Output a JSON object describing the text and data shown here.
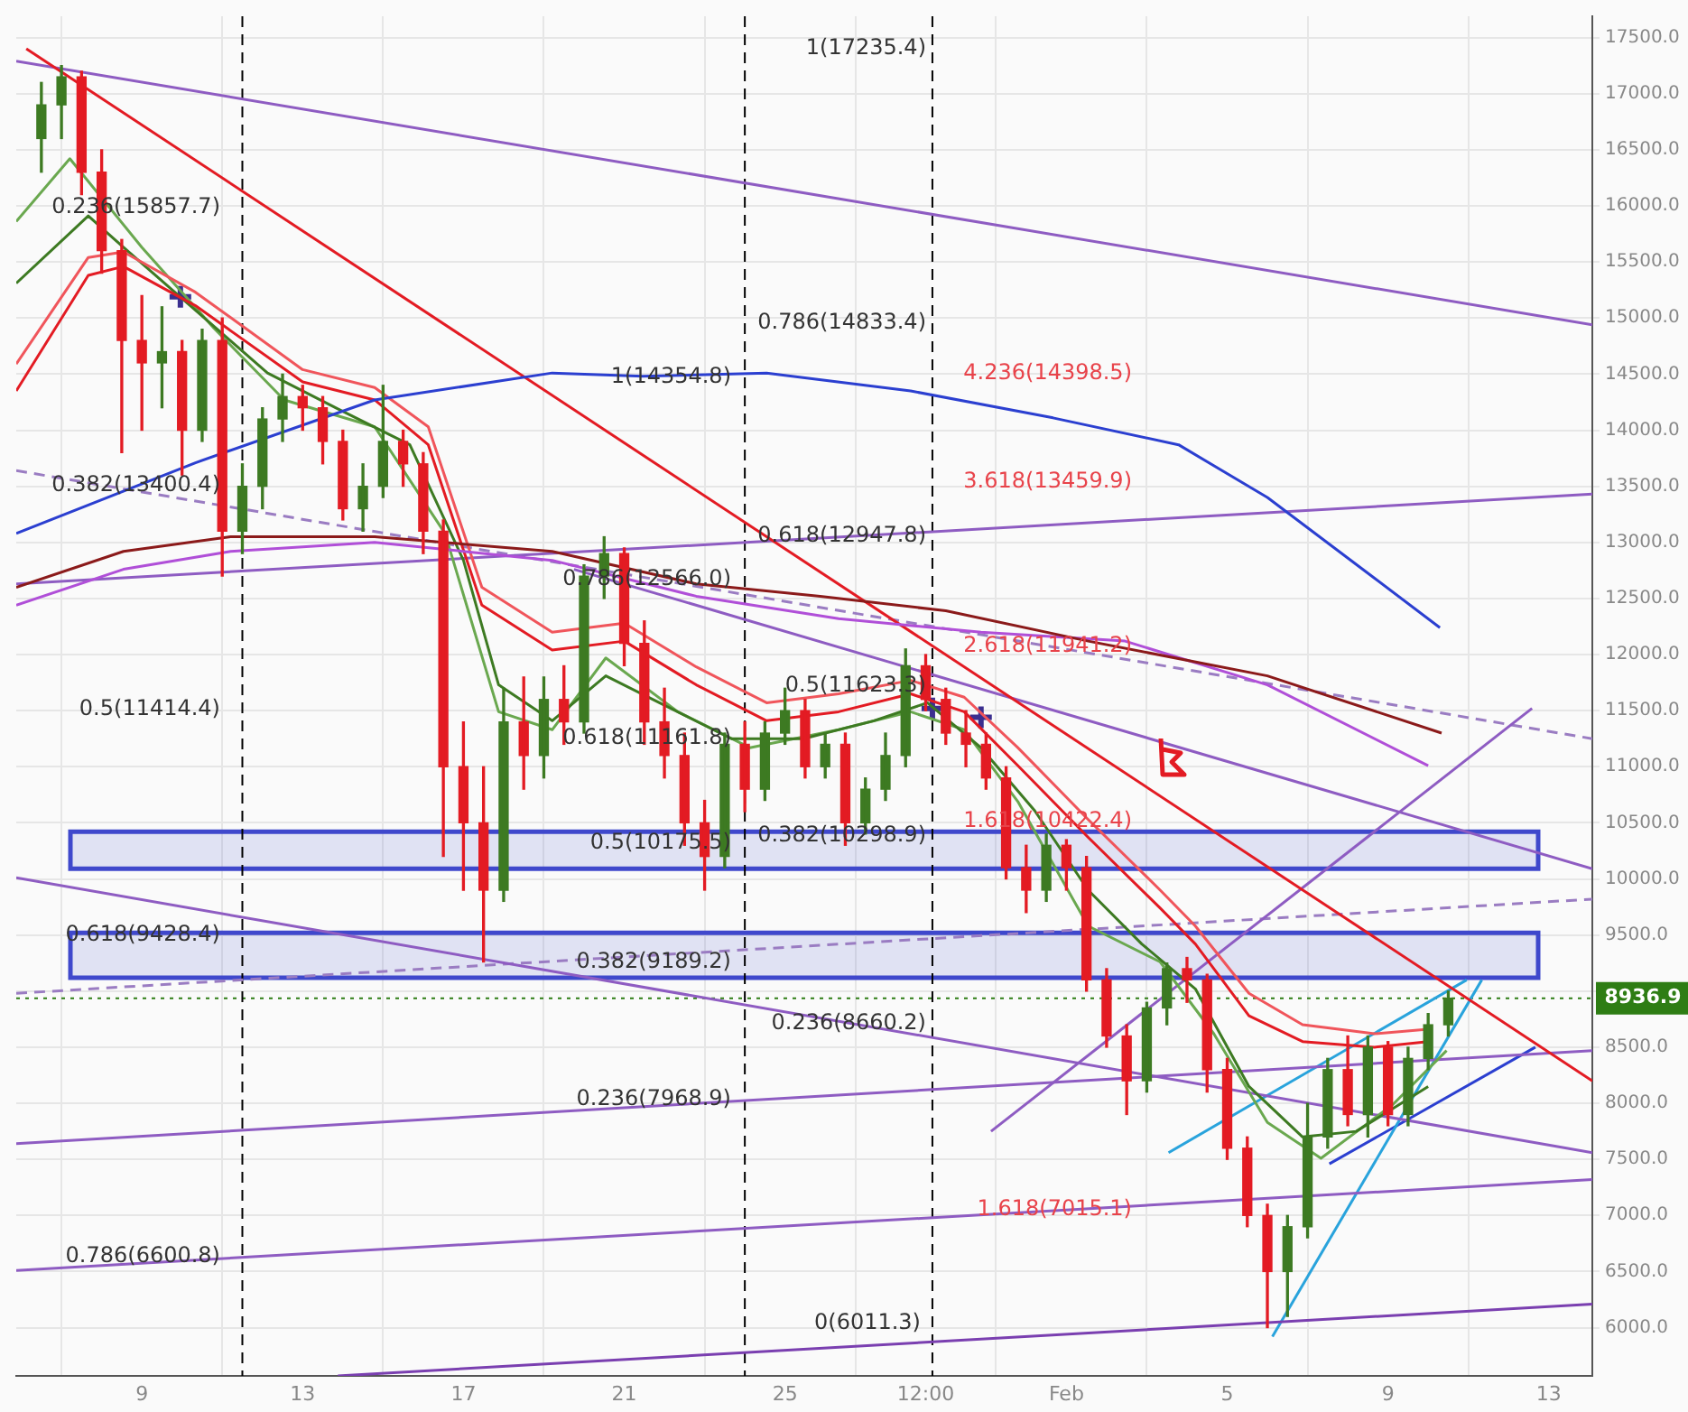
{
  "chart_data": {
    "type": "candlestick",
    "x": [
      "--01-06T12:00",
      "--01-07T00:00",
      "--01-07T12:00",
      "--01-08T00:00",
      "--01-08T12:00",
      "--01-09T00:00",
      "--01-09T12:00",
      "--01-10T00:00",
      "--01-10T12:00",
      "--01-11T00:00",
      "--01-11T12:00",
      "--01-12T00:00",
      "--01-12T12:00",
      "--01-13T00:00",
      "--01-13T12:00",
      "--01-14T00:00",
      "--01-14T12:00",
      "--01-15T00:00",
      "--01-15T12:00",
      "--01-16T00:00",
      "--01-16T12:00",
      "--01-17T00:00",
      "--01-17T12:00",
      "--01-18T00:00",
      "--01-18T12:00",
      "--01-19T00:00",
      "--01-19T12:00",
      "--01-20T00:00",
      "--01-20T12:00",
      "--01-21T00:00",
      "--01-21T12:00",
      "--01-22T00:00",
      "--01-22T12:00",
      "--01-23T00:00",
      "--01-23T12:00",
      "--01-24T00:00",
      "--01-24T12:00",
      "--01-25T00:00",
      "--01-25T12:00",
      "--01-26T00:00",
      "--01-26T12:00",
      "--01-27T00:00",
      "--01-27T12:00",
      "--01-28T00:00",
      "--01-28T12:00",
      "--01-29T00:00",
      "--01-29T12:00",
      "--01-30T00:00",
      "--01-30T12:00",
      "--01-31T00:00",
      "--01-31T12:00",
      "--02-01T00:00",
      "--02-01T12:00",
      "--02-02T00:00",
      "--02-02T12:00",
      "--02-03T00:00",
      "--02-03T12:00",
      "--02-04T00:00",
      "--02-04T12:00",
      "--02-05T00:00",
      "--02-05T12:00",
      "--02-06T00:00",
      "--02-06T12:00",
      "--02-07T00:00",
      "--02-07T12:00",
      "--02-08T00:00",
      "--02-08T12:00",
      "--02-09T00:00",
      "--02-09T12:00",
      "--02-10T00:00",
      "--02-10T12:00"
    ],
    "ohlc": [
      [
        16600,
        17100,
        16300,
        16900
      ],
      [
        16900,
        17250,
        16600,
        17150
      ],
      [
        17150,
        17200,
        16100,
        16300
      ],
      [
        16300,
        16500,
        15400,
        15600
      ],
      [
        15600,
        15700,
        13800,
        14800
      ],
      [
        14800,
        15200,
        14000,
        14600
      ],
      [
        14600,
        15100,
        14200,
        14700
      ],
      [
        14700,
        14800,
        13600,
        14000
      ],
      [
        14000,
        14900,
        13900,
        14800
      ],
      [
        14800,
        15000,
        12700,
        13100
      ],
      [
        13100,
        13700,
        12900,
        13500
      ],
      [
        13500,
        14200,
        13300,
        14100
      ],
      [
        14100,
        14500,
        13900,
        14300
      ],
      [
        14300,
        14400,
        14000,
        14200
      ],
      [
        14200,
        14300,
        13700,
        13900
      ],
      [
        13900,
        14000,
        13200,
        13300
      ],
      [
        13300,
        13700,
        13100,
        13500
      ],
      [
        13500,
        14400,
        13400,
        13900
      ],
      [
        13900,
        14000,
        13500,
        13700
      ],
      [
        13700,
        13800,
        12900,
        13100
      ],
      [
        13100,
        13200,
        10200,
        11000
      ],
      [
        11000,
        11400,
        9900,
        10500
      ],
      [
        10500,
        11000,
        9260,
        9900
      ],
      [
        9900,
        11700,
        9800,
        11400
      ],
      [
        11400,
        11800,
        10800,
        11100
      ],
      [
        11100,
        11800,
        10900,
        11600
      ],
      [
        11600,
        11900,
        11200,
        11400
      ],
      [
        11400,
        12800,
        11300,
        12700
      ],
      [
        12700,
        13050,
        12500,
        12900
      ],
      [
        12900,
        12950,
        11900,
        12100
      ],
      [
        12100,
        12300,
        11200,
        11400
      ],
      [
        11400,
        11700,
        10900,
        11100
      ],
      [
        11100,
        11300,
        10300,
        10500
      ],
      [
        10500,
        10700,
        9900,
        10200
      ],
      [
        10200,
        11300,
        10100,
        11200
      ],
      [
        11200,
        11400,
        10600,
        10800
      ],
      [
        10800,
        11400,
        10700,
        11300
      ],
      [
        11300,
        11700,
        11200,
        11500
      ],
      [
        11500,
        11600,
        10900,
        11000
      ],
      [
        11000,
        11300,
        10900,
        11200
      ],
      [
        11200,
        11300,
        10300,
        10500
      ],
      [
        10500,
        10900,
        10400,
        10800
      ],
      [
        10800,
        11300,
        10700,
        11100
      ],
      [
        11100,
        12050,
        11000,
        11900
      ],
      [
        11900,
        12000,
        11500,
        11600
      ],
      [
        11600,
        11700,
        11200,
        11300
      ],
      [
        11300,
        11500,
        11000,
        11200
      ],
      [
        11200,
        11300,
        10800,
        10900
      ],
      [
        10900,
        11000,
        10000,
        10100
      ],
      [
        10100,
        10300,
        9700,
        9900
      ],
      [
        9900,
        10400,
        9800,
        10300
      ],
      [
        10300,
        10350,
        9900,
        10100
      ],
      [
        10100,
        10200,
        9000,
        9100
      ],
      [
        9100,
        9200,
        8500,
        8600
      ],
      [
        8600,
        8700,
        7900,
        8200
      ],
      [
        8200,
        8900,
        8100,
        8850
      ],
      [
        8850,
        9250,
        8700,
        9200
      ],
      [
        9200,
        9300,
        8900,
        9100
      ],
      [
        9100,
        9150,
        8100,
        8300
      ],
      [
        8300,
        8400,
        7500,
        7600
      ],
      [
        7600,
        7700,
        6900,
        7000
      ],
      [
        7000,
        7100,
        6000,
        6500
      ],
      [
        6500,
        7000,
        6100,
        6900
      ],
      [
        6900,
        8000,
        6800,
        7700
      ],
      [
        7700,
        8400,
        7600,
        8300
      ],
      [
        8300,
        8600,
        7800,
        7900
      ],
      [
        7900,
        8600,
        7700,
        8500
      ],
      [
        8500,
        8550,
        7800,
        7900
      ],
      [
        7900,
        8500,
        7800,
        8400
      ],
      [
        8400,
        8800,
        8300,
        8700
      ],
      [
        8700,
        9000,
        8600,
        8936.9
      ]
    ],
    "colors": [
      "#3d7a22",
      "#3d7a22",
      "#e31b23",
      "#e31b23",
      "#e31b23",
      "#e31b23",
      "#3d7a22",
      "#e31b23",
      "#3d7a22",
      "#e31b23",
      "#3d7a22",
      "#3d7a22",
      "#3d7a22",
      "#e31b23",
      "#e31b23",
      "#e31b23",
      "#3d7a22",
      "#3d7a22",
      "#e31b23",
      "#e31b23",
      "#e31b23",
      "#e31b23",
      "#e31b23",
      "#3d7a22",
      "#e31b23",
      "#3d7a22",
      "#e31b23",
      "#3d7a22",
      "#3d7a22",
      "#e31b23",
      "#e31b23",
      "#e31b23",
      "#e31b23",
      "#e31b23",
      "#3d7a22",
      "#e31b23",
      "#3d7a22",
      "#3d7a22",
      "#e31b23",
      "#3d7a22",
      "#e31b23",
      "#3d7a22",
      "#3d7a22",
      "#3d7a22",
      "#e31b23",
      "#e31b23",
      "#e31b23",
      "#e31b23",
      "#e31b23",
      "#e31b23",
      "#3d7a22",
      "#e31b23",
      "#e31b23",
      "#e31b23",
      "#e31b23",
      "#3d7a22",
      "#3d7a22",
      "#e31b23",
      "#e31b23",
      "#e31b23",
      "#e31b23",
      "#e31b23",
      "#3d7a22",
      "#3d7a22",
      "#3d7a22",
      "#e31b23",
      "#3d7a22",
      "#e31b23",
      "#3d7a22",
      "#3d7a22",
      "#3d7a22"
    ],
    "series": [
      {
        "type": "line",
        "color": "#2b3fd0",
        "x": [
          "--01-05T21:00",
          "--01-10T08:00",
          "--01-14T19:00",
          "--01-19T05:00",
          "--01-21T11:00",
          "--01-24T13:00",
          "--01-28T03:00",
          "--01-31T16:00",
          "--02-03T19:00",
          "--02-06T00:00",
          "--02-08T16:00",
          "--02-10T07:00"
        ],
        "values": [
          13080,
          13710,
          14270,
          14510,
          14480,
          14510,
          14350,
          14110,
          13870,
          13400,
          12680,
          12240
        ]
      },
      {
        "type": "line",
        "color": "#8b1a1a",
        "x": [
          "--01-05T21:00",
          "--01-08T13:00",
          "--01-11T05:00",
          "--01-14T19:00",
          "--01-19T05:00",
          "--01-22T19:00",
          "--01-25T21:00",
          "--01-29T00:00",
          "--02-01T13:00",
          "--02-06T00:00",
          "--02-10T08:00"
        ],
        "values": [
          12600,
          12920,
          13050,
          13050,
          12920,
          12630,
          12520,
          12390,
          12120,
          11810,
          11300
        ]
      },
      {
        "type": "line",
        "color": "#b04fd8",
        "x": [
          "--01-05T21:00",
          "--01-08T13:00",
          "--01-11T05:00",
          "--01-14T19:00",
          "--01-19T05:00",
          "--01-22T19:00",
          "--01-26T08:00",
          "--01-29T21:00",
          "--02-02T11:00",
          "--02-06T00:00",
          "--02-10T00:00"
        ],
        "values": [
          12440,
          12760,
          12920,
          13000,
          12840,
          12520,
          12320,
          12200,
          12120,
          11730,
          11010
        ]
      },
      {
        "type": "line",
        "color": "#e31b23",
        "x": [
          "--01-05T21:00",
          "--01-07T16:00",
          "--01-08T13:00",
          "--01-10T08:00",
          "--01-13T00:00",
          "--01-14T19:00",
          "--01-16T03:00",
          "--01-17T11:00",
          "--01-19T05:00",
          "--01-21T00:00",
          "--01-22T19:00",
          "--01-24T13:00",
          "--01-26T08:00",
          "--01-28T03:00",
          "--01-29T11:00",
          "--01-30T19:00",
          "--02-01T13:00",
          "--02-03T08:00",
          "--02-04T05:00",
          "--02-05T13:00",
          "--02-06T21:00",
          "--02-08T16:00",
          "--02-10T00:00"
        ],
        "values": [
          14350,
          15380,
          15460,
          15110,
          14430,
          14270,
          13870,
          12440,
          12040,
          12120,
          11730,
          11410,
          11490,
          11650,
          11490,
          11010,
          10370,
          9740,
          9420,
          8780,
          8550,
          8500,
          8550
        ]
      },
      {
        "type": "line",
        "color": "#f0555b",
        "x": [
          "--01-05T21:00",
          "--01-07T16:00",
          "--01-08T13:00",
          "--01-10T08:00",
          "--01-13T00:00",
          "--01-14T19:00",
          "--01-16T03:00",
          "--01-17T11:00",
          "--01-19T05:00",
          "--01-21T00:00",
          "--01-22T19:00",
          "--01-24T13:00",
          "--01-26T08:00",
          "--01-28T03:00",
          "--01-29T11:00",
          "--01-30T19:00",
          "--02-01T13:00",
          "--02-03T08:00",
          "--02-04T05:00",
          "--02-05T13:00",
          "--02-06T21:00",
          "--02-08T16:00",
          "--02-10T00:00"
        ],
        "values": [
          14590,
          15540,
          15590,
          15230,
          14540,
          14380,
          14030,
          12600,
          12200,
          12280,
          11890,
          11570,
          11650,
          11770,
          11620,
          11170,
          10530,
          9900,
          9580,
          8980,
          8700,
          8620,
          8660
        ]
      },
      {
        "type": "line",
        "color": "#3d7a22",
        "x": [
          "--01-05T21:00",
          "--01-07T16:00",
          "--01-08T13:00",
          "--01-10T08:00",
          "--01-12T03:00",
          "--01-13T21:00",
          "--01-15T16:00",
          "--01-17T00:00",
          "--01-17T21:00",
          "--01-19T05:00",
          "--01-20T13:00",
          "--01-21T21:00",
          "--01-23T16:00",
          "--01-25T11:00",
          "--01-27T05:00",
          "--01-28T13:00",
          "--01-29T21:00",
          "--01-31T05:00",
          "--02-01T13:00",
          "--02-02T21:00",
          "--02-04T05:00",
          "--02-05T13:00",
          "--02-06T21:00",
          "--02-08T05:00",
          "--02-10T00:00"
        ],
        "values": [
          15310,
          15910,
          15630,
          15070,
          14510,
          14190,
          13870,
          12840,
          11730,
          11410,
          11810,
          11570,
          11250,
          11250,
          11410,
          11570,
          11170,
          10610,
          9900,
          9420,
          9020,
          8150,
          7700,
          7750,
          8150
        ]
      },
      {
        "type": "line",
        "color": "#6aa84f",
        "x": [
          "--01-05T21:00",
          "--01-07T05:00",
          "--01-09T00:00",
          "--01-10T19:00",
          "--01-12T13:00",
          "--01-14T19:00",
          "--01-16T13:00",
          "--01-17T21:00",
          "--01-19T05:00",
          "--01-20T13:00",
          "--01-22T08:00",
          "--01-24T03:00",
          "--01-26T08:00",
          "--01-28T03:00",
          "--01-29T11:00",
          "--01-30T19:00",
          "--02-01T13:00",
          "--02-03T08:00",
          "--02-04T16:00",
          "--02-06T00:00",
          "--02-07T08:00",
          "--02-09T03:00",
          "--02-10T11:00"
        ],
        "values": [
          15860,
          16420,
          15630,
          14910,
          14270,
          14030,
          13080,
          11490,
          11330,
          11970,
          11490,
          11170,
          11330,
          11490,
          11330,
          10690,
          9580,
          9260,
          8620,
          7830,
          7510,
          7990,
          8470
        ]
      },
      {
        "type": "line",
        "color": "#e31b23",
        "x": [
          "--01-06T03:00",
          "--02-14T02:00"
        ],
        "values": [
          17400,
          8200
        ]
      },
      {
        "type": "line",
        "color": "#8e5cc2",
        "x": [
          "--01-05T21:00",
          "--02-14T02:00"
        ],
        "values": [
          17290,
          14940
        ]
      },
      {
        "type": "line",
        "color": "#8e5cc2",
        "x": [
          "--01-05T21:00",
          "--02-14T02:00"
        ],
        "values": [
          12630,
          13430
        ]
      },
      {
        "type": "line",
        "color": "#8e5cc2",
        "x": [
          "--01-05T21:00",
          "--02-14T02:00"
        ],
        "values": [
          10010,
          7560
        ]
      },
      {
        "type": "line",
        "color": "#8e5cc2",
        "x": [
          "--01-05T21:00",
          "--02-14T02:00"
        ],
        "values": [
          7640,
          8470
        ]
      },
      {
        "type": "line",
        "color": "#8e5cc2",
        "x": [
          "--01-05T21:00",
          "--02-14T02:00"
        ],
        "values": [
          6510,
          7320
        ]
      },
      {
        "type": "line",
        "color": "#7a3fb0",
        "x": [
          "--01-13T21:00",
          "--02-14T02:00"
        ],
        "values": [
          5570,
          6210
        ]
      },
      {
        "type": "line",
        "color": "#8e5cc2",
        "x": [
          "--01-19T18:00",
          "--02-14T02:00"
        ],
        "values": [
          12760,
          10090
        ]
      },
      {
        "type": "line",
        "color": "#8e5cc2",
        "x": [
          "--01-30T03:00",
          "--02-12T14:00"
        ],
        "values": [
          7750,
          11520
        ]
      },
      {
        "type": "line",
        "color": "#9a7cc2",
        "line_style": "dashed",
        "x": [
          "--01-05T21:00",
          "--02-14T02:00"
        ],
        "values": [
          13640,
          11250
        ]
      },
      {
        "type": "line",
        "color": "#9a7cc2",
        "line_style": "dashed",
        "x": [
          "--01-05T21:00",
          "--02-14T02:00"
        ],
        "values": [
          8980,
          9820
        ]
      },
      {
        "type": "line",
        "color": "#29a3dc",
        "x": [
          "--02-03T13:00",
          "--02-10T23:00"
        ],
        "values": [
          7560,
          9100
        ]
      },
      {
        "type": "line",
        "color": "#29a3dc",
        "x": [
          "--02-06T03:00",
          "--02-11T08:00"
        ],
        "values": [
          5920,
          9100
        ]
      },
      {
        "type": "line",
        "color": "#2b3fd0",
        "x": [
          "--02-07T13:00",
          "--02-12T16:00"
        ],
        "values": [
          7460,
          8500
        ]
      },
      {
        "type": "scatter",
        "color": "#3b2f8f",
        "marker": "cross",
        "x": [
          "--01-09T23:00",
          "--01-28T16:00",
          "--01-29T21:00"
        ],
        "values": [
          15190,
          11520,
          11440
        ]
      }
    ],
    "xlim": [
      "--01-05T21:00",
      "--02-14T02:00"
    ],
    "xticks": [
      {
        "value": "--01-09",
        "label": "9"
      },
      {
        "value": "--01-13",
        "label": "13"
      },
      {
        "value": "--01-17",
        "label": "17"
      },
      {
        "value": "--01-21",
        "label": "21"
      },
      {
        "value": "--01-25",
        "label": "25"
      },
      {
        "value": "--01-28T12:00",
        "label": "12:00"
      },
      {
        "value": "--02-01",
        "label": "Feb"
      },
      {
        "value": "--02-05",
        "label": "5"
      },
      {
        "value": "--02-09",
        "label": "9"
      },
      {
        "value": "--02-13",
        "label": "13"
      }
    ],
    "ylim": [
      5570,
      17690
    ],
    "yticks": [
      {
        "value": 6000,
        "label": "6000.0"
      },
      {
        "value": 6500,
        "label": "6500.0"
      },
      {
        "value": 7000,
        "label": "7000.0"
      },
      {
        "value": 7500,
        "label": "7500.0"
      },
      {
        "value": 8000,
        "label": "8000.0"
      },
      {
        "value": 8500,
        "label": "8500.0"
      },
      {
        "value": 9000,
        "label": null
      },
      {
        "value": 9500,
        "label": "9500.0"
      },
      {
        "value": 10000,
        "label": "10000.0"
      },
      {
        "value": 10500,
        "label": "10500.0"
      },
      {
        "value": 11000,
        "label": "11000.0"
      },
      {
        "value": 11500,
        "label": "11500.0"
      },
      {
        "value": 12000,
        "label": "12000.0"
      },
      {
        "value": 12500,
        "label": "12500.0"
      },
      {
        "value": 13000,
        "label": "13000.0"
      },
      {
        "value": 13500,
        "label": "13500.0"
      },
      {
        "value": 14000,
        "label": "14000.0"
      },
      {
        "value": 14500,
        "label": "14500.0"
      },
      {
        "value": 15000,
        "label": "15000.0"
      },
      {
        "value": 15500,
        "label": "15500.0"
      },
      {
        "value": 16000,
        "label": "16000.0"
      },
      {
        "value": 16500,
        "label": "16500.0"
      },
      {
        "value": 17000,
        "label": "17000.0"
      },
      {
        "value": 17500,
        "label": "17500.0"
      }
    ],
    "grid": true,
    "bands": [
      {
        "axis": "y",
        "from": 10090,
        "to": 10420,
        "color": "#3f48cc"
      },
      {
        "axis": "y",
        "from": 9120,
        "to": 9520,
        "color": "#3f48cc"
      }
    ],
    "ref_lines": [
      {
        "axis": "y",
        "value": 8936.9,
        "label": "8936.9",
        "color": "#2e7d14",
        "line_style": "dotted"
      },
      {
        "axis": "x",
        "value": "--01-11T12:00",
        "color": "#000000",
        "line_style": "dashed"
      },
      {
        "axis": "x",
        "value": "--01-24T00:00",
        "color": "#000000",
        "line_style": "dashed"
      },
      {
        "axis": "x",
        "value": "--01-28T16:00",
        "color": "#000000",
        "line_style": "dashed"
      }
    ],
    "annotations": [
      "0.236(15857.7)",
      "0.382(13400.4)",
      "0.5(11414.4)",
      "0.618(9428.4)",
      "0.786(6600.8)",
      "1(14354.8)",
      "0.786(12566.0)",
      "0.618(11161.8)",
      "0.5(10175.5)",
      "0.382(9189.2)",
      "0.236(7968.9)",
      "1(17235.4)",
      "0.786(14833.4)",
      "0.618(12947.8)",
      "0.5(11623.3)",
      "0.382(10298.9)",
      "0.236(8660.2)",
      "0(6011.3)",
      "4.236(14398.5)",
      "3.618(13459.9)",
      "2.618(11941.2)",
      "1.618(10422.4)",
      "1.618(7015.1)"
    ]
  }
}
